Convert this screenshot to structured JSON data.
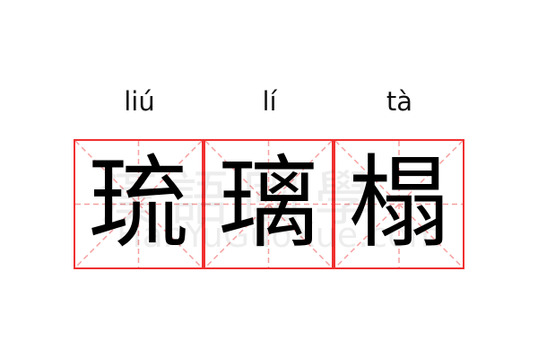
{
  "characters": [
    {
      "hanzi": "琉",
      "pinyin": "liú"
    },
    {
      "hanzi": "璃",
      "pinyin": "lí"
    },
    {
      "hanzi": "榻",
      "pinyin": "tà"
    }
  ],
  "watermark": {
    "text": "漢語國學",
    "url": "HanYuGuoXue.com"
  },
  "colors": {
    "border": "#f03030",
    "guide": "#f5a0a0",
    "text": "#000000"
  }
}
